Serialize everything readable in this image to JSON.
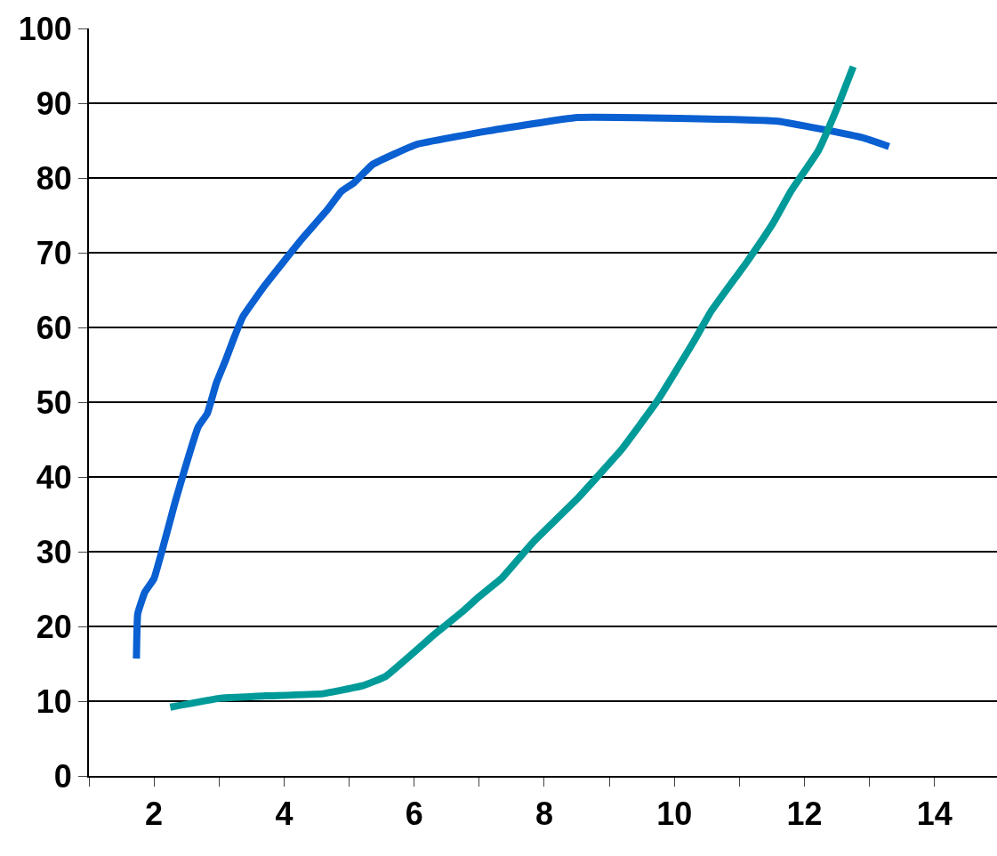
{
  "chart_data": {
    "type": "line",
    "xlim": [
      1,
      14.96
    ],
    "ylim": [
      0,
      100
    ],
    "xticks": [
      {
        "value": 1,
        "label": null
      },
      2,
      {
        "value": 3,
        "label": null
      },
      4,
      {
        "value": 5,
        "label": null
      },
      6,
      {
        "value": 7,
        "label": null
      },
      8,
      {
        "value": 9,
        "label": null
      },
      10,
      {
        "value": 11,
        "label": null
      },
      12,
      {
        "value": 13,
        "label": null
      },
      14
    ],
    "yticks": [
      0,
      10,
      20,
      30,
      40,
      50,
      60,
      70,
      80,
      90,
      100
    ],
    "grid": "y",
    "marker": "none",
    "line_style": "solid",
    "series": [
      {
        "color": "#0a5fd1",
        "x": [
          1.73,
          1.75,
          1.86,
          2.0,
          2.34,
          2.68,
          2.82,
          2.96,
          3.1,
          3.23,
          3.37,
          3.71,
          4.26,
          4.67,
          4.88,
          5.08,
          5.36,
          6.04,
          7.14,
          8.51,
          11.59,
          12.89,
          13.3
        ],
        "values": [
          15.7,
          21.7,
          24.6,
          26.4,
          37.1,
          46.7,
          48.5,
          52.6,
          55.6,
          58.6,
          61.5,
          65.7,
          71.7,
          75.8,
          78.2,
          79.4,
          81.8,
          84.5,
          86.3,
          88.1,
          87.6,
          85.4,
          84.2
        ]
      },
      {
        "color": "#009a99",
        "x": [
          2.25,
          3.03,
          3.71,
          4.6,
          5.22,
          5.56,
          6.32,
          6.73,
          7.0,
          7.34,
          7.82,
          8.51,
          9.19,
          9.74,
          10.29,
          10.56,
          11.11,
          11.52,
          11.79,
          12.21,
          12.48,
          12.75
        ],
        "values": [
          9.2,
          10.4,
          10.7,
          11.0,
          12.1,
          13.3,
          19.0,
          21.9,
          24.0,
          26.4,
          31.2,
          37.1,
          43.7,
          50.2,
          58.0,
          62.1,
          68.7,
          74.0,
          78.2,
          83.6,
          88.9,
          94.9
        ]
      }
    ]
  }
}
